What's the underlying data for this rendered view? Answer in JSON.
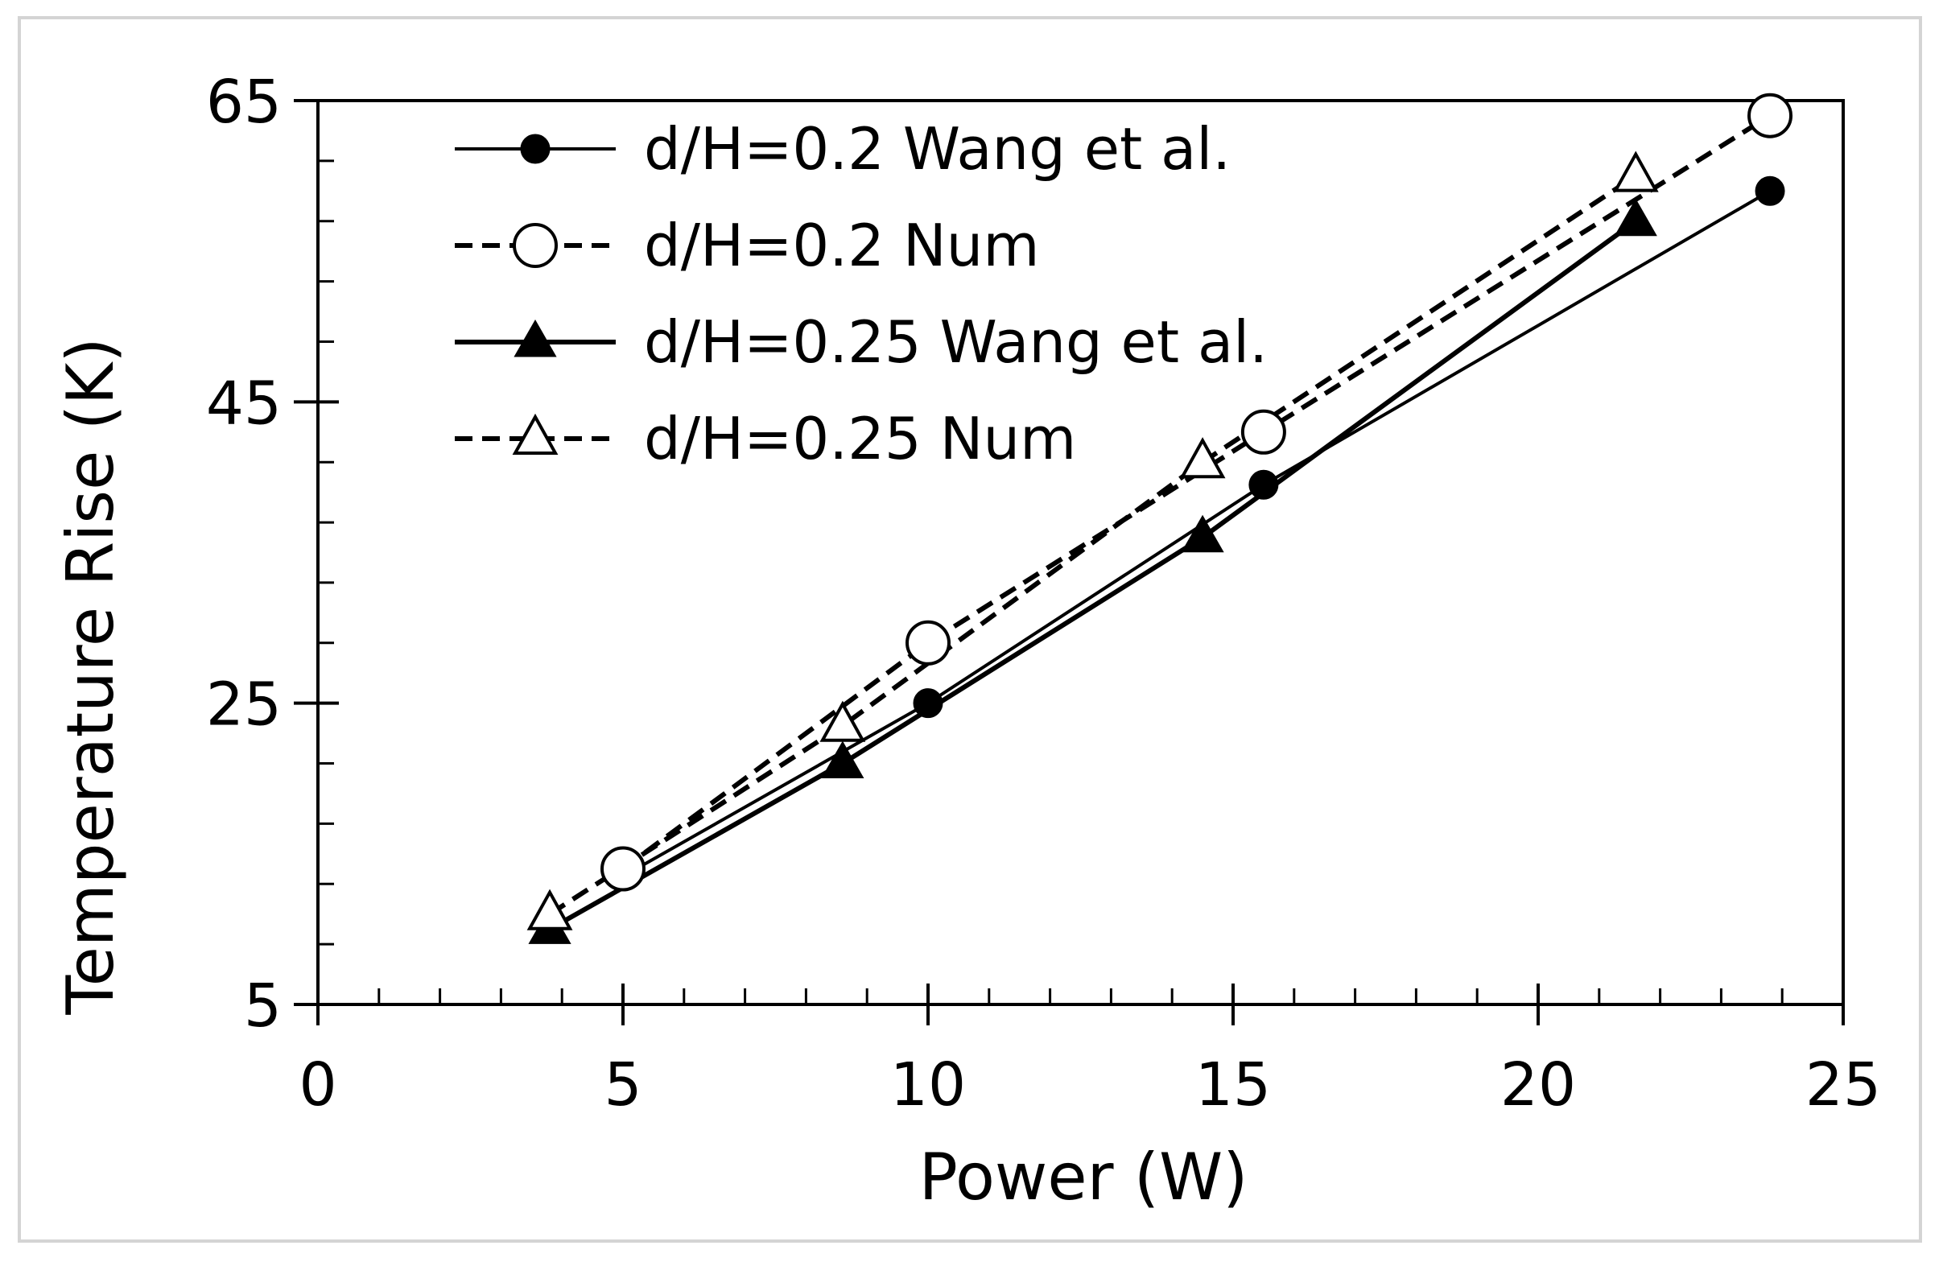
{
  "chart_data": {
    "type": "line",
    "xlabel": "Power (W)",
    "ylabel": "Temperature Rise (K)",
    "xlim": [
      0,
      25
    ],
    "ylim": [
      5,
      65
    ],
    "x_major_ticks": [
      0,
      5,
      10,
      15,
      20,
      25
    ],
    "x_tick_labels": [
      "0",
      "5",
      "10",
      "15",
      "20",
      "25"
    ],
    "x_minor_step": 1,
    "y_major_ticks": [
      5,
      25,
      45,
      65
    ],
    "y_tick_labels": [
      "5",
      "25",
      "45",
      "65"
    ],
    "y_minor_step": 4,
    "grid": false,
    "legend_position": "top-left",
    "series": [
      {
        "name": "d/H=0.2 Wang et al.",
        "line": "solid",
        "marker": "filled-circle",
        "x": [
          5.0,
          10.0,
          15.5,
          23.8
        ],
        "y": [
          13.5,
          25.0,
          39.5,
          59.0
        ]
      },
      {
        "name": "d/H=0.2 Num",
        "line": "dashed",
        "marker": "open-circle",
        "x": [
          5.0,
          10.0,
          15.5,
          23.8
        ],
        "y": [
          14.0,
          29.0,
          43.0,
          64.0
        ]
      },
      {
        "name": "d/H=0.25 Wang et al.",
        "line": "solid",
        "marker": "filled-triangle",
        "x": [
          3.8,
          8.6,
          14.5,
          21.6
        ],
        "y": [
          10.0,
          21.0,
          36.0,
          57.0
        ]
      },
      {
        "name": "d/H=0.25 Num",
        "line": "dashed",
        "marker": "open-triangle",
        "x": [
          3.8,
          8.6,
          14.5,
          21.6
        ],
        "y": [
          11.0,
          23.5,
          41.0,
          60.0
        ]
      }
    ]
  }
}
